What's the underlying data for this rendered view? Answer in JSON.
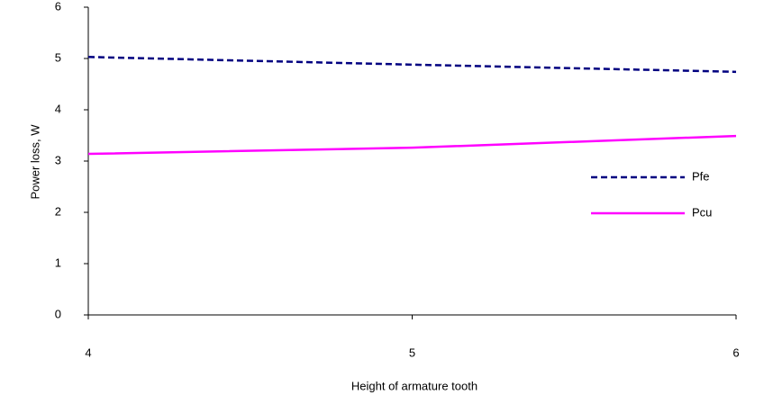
{
  "chart_data": {
    "type": "line",
    "x_label": "Height of armature tooth",
    "y_label": "Power loss, W",
    "x": [
      4,
      5,
      6
    ],
    "series": [
      {
        "name": "Pfe",
        "color": "#000080",
        "dash": true,
        "values": [
          5.03,
          4.88,
          4.74
        ]
      },
      {
        "name": "Pcu",
        "color": "#ff00ff",
        "dash": false,
        "values": [
          3.14,
          3.26,
          3.49
        ]
      }
    ],
    "xlim": [
      4,
      6
    ],
    "xticks": [
      4,
      5,
      6
    ],
    "ylim": [
      0,
      6
    ],
    "yticks": [
      0,
      1,
      2,
      3,
      4,
      5,
      6
    ],
    "grid": false,
    "legend": "right"
  }
}
